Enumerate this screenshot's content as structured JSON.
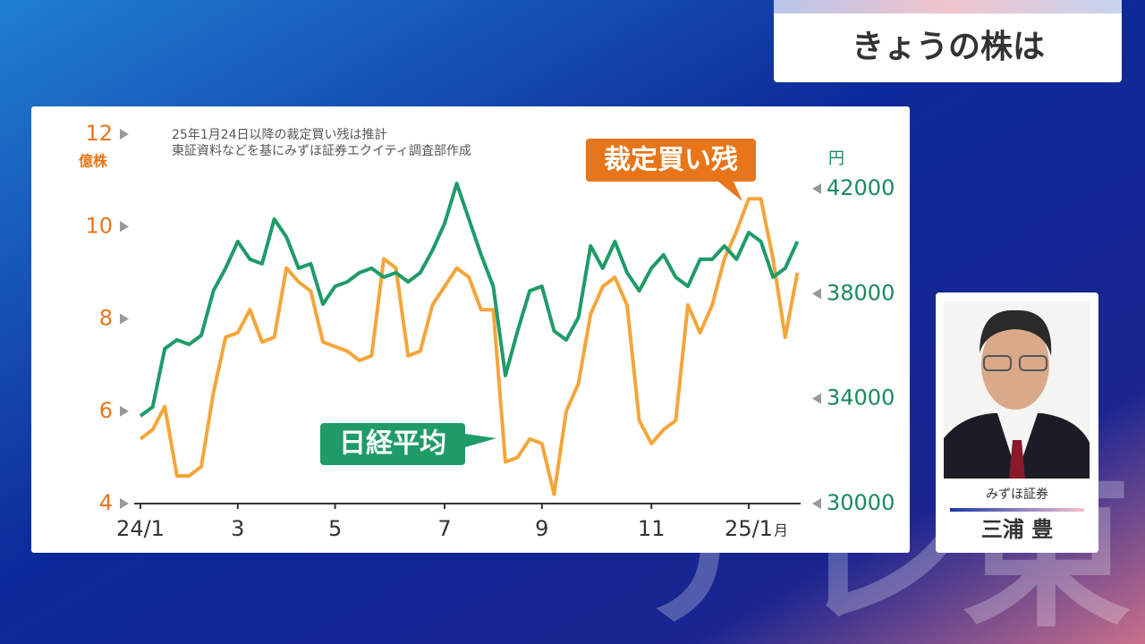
{
  "header": {
    "title": "きょうの株は"
  },
  "watermark": "テレ東",
  "guest": {
    "company": "みずほ証券",
    "name": "三浦 豊"
  },
  "chart_data": {
    "type": "line",
    "notes": [
      "25年1月24日以降の裁定買い残は推計",
      "東証資料などを基にみずほ証券エクイティ調査部作成"
    ],
    "ylabel": "億株",
    "y2label": "円",
    "xlabel": "月",
    "categories": [
      "24/1",
      null,
      null,
      null,
      null,
      null,
      null,
      null,
      "3",
      null,
      null,
      null,
      null,
      null,
      null,
      null,
      "5",
      null,
      null,
      null,
      null,
      null,
      null,
      null,
      null,
      "7",
      null,
      null,
      null,
      null,
      null,
      null,
      null,
      "9",
      null,
      null,
      null,
      null,
      null,
      null,
      null,
      null,
      "11",
      null,
      null,
      null,
      null,
      null,
      null,
      null,
      "25/1",
      null,
      null,
      null,
      null
    ],
    "ylim": [
      4,
      12
    ],
    "yticks": [
      4,
      6,
      8,
      10,
      12
    ],
    "y2lim": [
      30000,
      44080
    ],
    "y2ticks": [
      30000,
      34000,
      38000,
      42000
    ],
    "series": [
      {
        "name": "裁定買い残",
        "color": "#f5a53a",
        "values": [
          5.4,
          5.6,
          6.1,
          4.6,
          4.6,
          4.8,
          6.4,
          7.6,
          7.7,
          8.2,
          7.5,
          7.6,
          9.1,
          8.8,
          8.6,
          7.5,
          7.4,
          7.3,
          7.1,
          7.2,
          9.3,
          9.1,
          7.2,
          7.3,
          8.3,
          8.7,
          9.1,
          8.9,
          8.2,
          8.2,
          4.9,
          5.0,
          5.4,
          5.3,
          4.2,
          6.0,
          6.6,
          8.1,
          8.7,
          8.9,
          8.3,
          5.8,
          5.3,
          5.6,
          5.8,
          8.3,
          7.7,
          8.3,
          9.3,
          9.9,
          10.6,
          10.6,
          9.3,
          7.6,
          9.0
        ]
      },
      {
        "name": "日経平均",
        "color": "#1f9b68",
        "axis": "y2",
        "values": [
          33340,
          33680,
          35900,
          36240,
          36070,
          36410,
          38110,
          38970,
          39990,
          39310,
          39140,
          40840,
          40160,
          38970,
          39140,
          37600,
          38280,
          38450,
          38800,
          38970,
          38630,
          38800,
          38450,
          38800,
          39650,
          40670,
          42200,
          40840,
          39480,
          38280,
          34880,
          36580,
          38110,
          38280,
          36580,
          36240,
          37090,
          39820,
          38970,
          39990,
          38800,
          38110,
          38970,
          39480,
          38630,
          38280,
          39310,
          39310,
          39820,
          39310,
          40330,
          39990,
          38630,
          38970,
          39990
        ]
      }
    ]
  }
}
